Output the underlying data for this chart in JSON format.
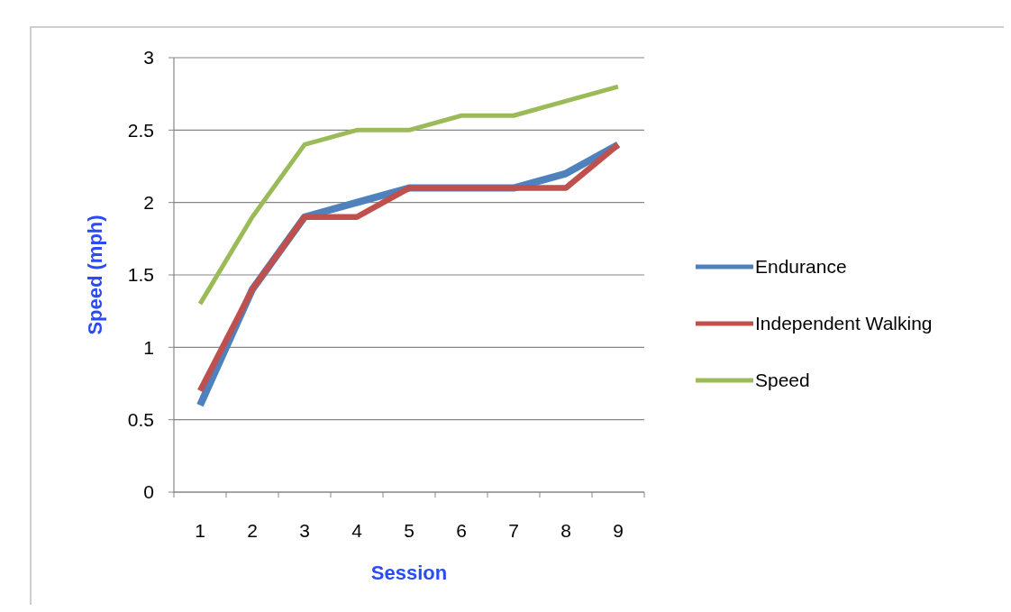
{
  "chart_data": {
    "type": "line",
    "xlabel": "Session",
    "ylabel": "Speed (mph)",
    "categories": [
      "1",
      "2",
      "3",
      "4",
      "5",
      "6",
      "7",
      "8",
      "9"
    ],
    "series": [
      {
        "name": "Endurance",
        "color": "#4f81bd",
        "values": [
          0.6,
          1.4,
          1.9,
          2.0,
          2.1,
          2.1,
          2.1,
          2.2,
          2.4
        ]
      },
      {
        "name": "Independent Walking",
        "color": "#c0504d",
        "values": [
          0.7,
          1.4,
          1.9,
          1.9,
          2.1,
          2.1,
          2.1,
          2.1,
          2.4
        ]
      },
      {
        "name": "Speed",
        "color": "#9bbb59",
        "values": [
          1.3,
          1.9,
          2.4,
          2.5,
          2.5,
          2.6,
          2.6,
          2.7,
          2.8
        ]
      }
    ],
    "ylim": [
      0,
      3
    ],
    "yticks": [
      0,
      0.5,
      1,
      1.5,
      2,
      2.5,
      3
    ],
    "grid": "y",
    "legend": "right",
    "marker": "none",
    "line_style": "solid"
  }
}
